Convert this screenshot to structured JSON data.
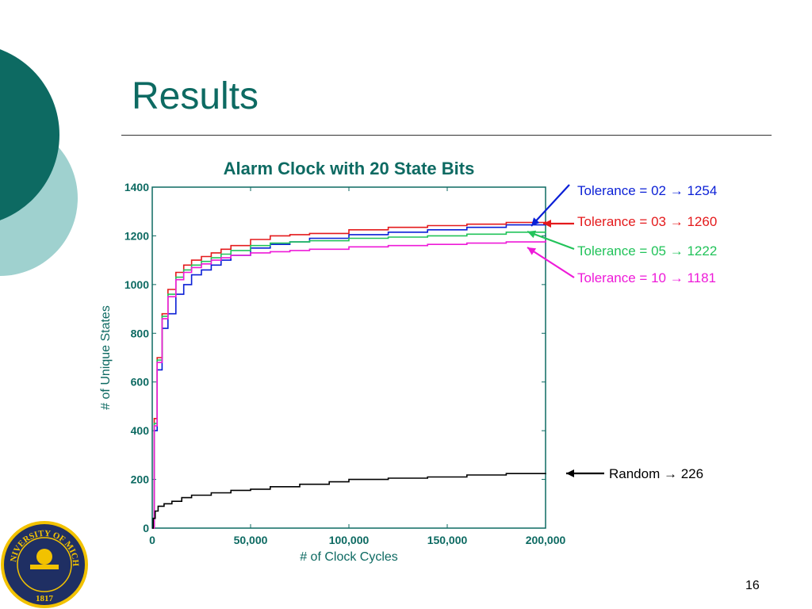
{
  "slide": {
    "title": "Results",
    "page_number": "16",
    "colors": {
      "title": "#0d6a62",
      "dark_teal": "#0d6a62",
      "light_teal": "#9fd1cf",
      "navy": "#1f2f63",
      "maize": "#f2c200"
    },
    "logo": {
      "icon": "university-of-michigan-seal-icon",
      "text_top": "THE UNIVERSITY OF MICHIGAN",
      "year": "1817"
    }
  },
  "chart_data": {
    "type": "line",
    "title": "Alarm Clock with 20 State Bits",
    "xlabel": "# of Clock Cycles",
    "ylabel": "# of Unique States",
    "xlim": [
      0,
      200000
    ],
    "ylim": [
      0,
      1400
    ],
    "x_ticks": [
      0,
      50000,
      100000,
      150000,
      200000
    ],
    "x_tick_labels": [
      "0",
      "50,000",
      "100,000",
      "150,000",
      "200,000"
    ],
    "y_ticks": [
      0,
      200,
      400,
      600,
      800,
      1000,
      1200,
      1400
    ],
    "y_tick_labels": [
      "0",
      "200",
      "400",
      "600",
      "800",
      "1000",
      "1200",
      "1400"
    ],
    "grid": false,
    "series": [
      {
        "color": "#0a1fd6",
        "x": [
          0,
          1000,
          2500,
          5000,
          8000,
          12000,
          16000,
          20000,
          25000,
          30000,
          35000,
          40000,
          50000,
          60000,
          70000,
          80000,
          100000,
          120000,
          140000,
          160000,
          180000,
          200000
        ],
        "y": [
          0,
          400,
          650,
          820,
          880,
          960,
          1000,
          1040,
          1060,
          1080,
          1100,
          1120,
          1150,
          1165,
          1175,
          1190,
          1205,
          1215,
          1225,
          1235,
          1245,
          1254
        ]
      },
      {
        "color": "#e41a1c",
        "x": [
          0,
          1000,
          2500,
          5000,
          8000,
          12000,
          16000,
          20000,
          25000,
          30000,
          35000,
          40000,
          50000,
          60000,
          70000,
          80000,
          100000,
          120000,
          140000,
          160000,
          180000,
          200000
        ],
        "y": [
          0,
          450,
          700,
          880,
          980,
          1050,
          1080,
          1100,
          1115,
          1130,
          1145,
          1160,
          1185,
          1200,
          1205,
          1210,
          1225,
          1235,
          1242,
          1248,
          1255,
          1260
        ]
      },
      {
        "color": "#22c35a",
        "x": [
          0,
          1000,
          2500,
          5000,
          8000,
          12000,
          16000,
          20000,
          25000,
          30000,
          35000,
          40000,
          50000,
          60000,
          70000,
          80000,
          100000,
          120000,
          140000,
          160000,
          180000,
          200000
        ],
        "y": [
          0,
          430,
          690,
          870,
          960,
          1030,
          1060,
          1080,
          1095,
          1110,
          1125,
          1140,
          1160,
          1170,
          1175,
          1180,
          1190,
          1195,
          1200,
          1207,
          1215,
          1222
        ]
      },
      {
        "color": "#ee1ad8",
        "x": [
          0,
          1000,
          2500,
          5000,
          8000,
          12000,
          16000,
          20000,
          25000,
          30000,
          35000,
          40000,
          50000,
          60000,
          70000,
          80000,
          100000,
          120000,
          140000,
          160000,
          180000,
          200000
        ],
        "y": [
          0,
          420,
          680,
          860,
          950,
          1020,
          1050,
          1070,
          1085,
          1100,
          1110,
          1120,
          1130,
          1135,
          1140,
          1145,
          1155,
          1160,
          1165,
          1170,
          1175,
          1181
        ]
      },
      {
        "color": "#000000",
        "x": [
          0,
          500,
          1500,
          3000,
          6000,
          10000,
          15000,
          20000,
          30000,
          40000,
          50000,
          60000,
          75000,
          90000,
          100000,
          120000,
          140000,
          160000,
          180000,
          200000
        ],
        "y": [
          0,
          40,
          70,
          90,
          100,
          110,
          125,
          135,
          145,
          155,
          160,
          170,
          180,
          190,
          200,
          205,
          210,
          218,
          224,
          226
        ]
      }
    ],
    "annotations": [
      {
        "label_prefix": "Tolerance = 02",
        "arrow": "→",
        "value": "1254",
        "color": "#0a1fd6",
        "series_index": 0
      },
      {
        "label_prefix": "Tolerance = 03",
        "arrow": "→",
        "value": "1260",
        "color": "#e41a1c",
        "series_index": 1
      },
      {
        "label_prefix": "Tolerance = 05",
        "arrow": "→",
        "value": "1222",
        "color": "#22c35a",
        "series_index": 2
      },
      {
        "label_prefix": "Tolerance = 10",
        "arrow": "→",
        "value": "1181",
        "color": "#ee1ad8",
        "series_index": 3
      },
      {
        "label_prefix": "Random",
        "arrow": "→",
        "value": "226",
        "color": "#000000",
        "series_index": 4
      }
    ]
  }
}
